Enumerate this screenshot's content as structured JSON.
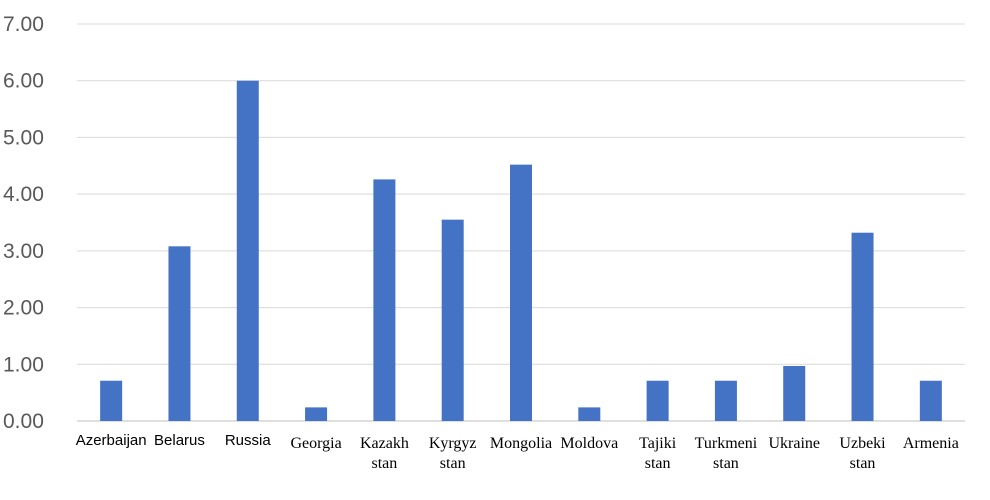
{
  "chart_data": {
    "type": "bar",
    "categories": [
      "Azerbaijan",
      "Belarus",
      "Russia",
      "Georgia",
      "Kazakhstan",
      "Kyrgyzstan",
      "Mongolia",
      "Moldova",
      "Tajikistan",
      "Turkmenistan",
      "Ukraine",
      "Uzbekistan",
      "Armenia"
    ],
    "category_label_lines": [
      [
        "Azerbaijan"
      ],
      [
        "Belarus"
      ],
      [
        "Russia"
      ],
      [
        "Georgia"
      ],
      [
        "Kazakh",
        "stan"
      ],
      [
        "Kyrgyz",
        "stan"
      ],
      [
        "Mongolia"
      ],
      [
        "Moldova"
      ],
      [
        "Tajiki",
        "stan"
      ],
      [
        "Turkmeni",
        "stan"
      ],
      [
        "Ukraine"
      ],
      [
        "Uzbeki",
        "stan"
      ],
      [
        "Armenia"
      ]
    ],
    "category_label_fonts": [
      "sans",
      "sans",
      "sans",
      "serif",
      "serif",
      "serif",
      "serif",
      "serif",
      "serif",
      "serif",
      "serif",
      "serif",
      "serif"
    ],
    "series": [
      {
        "values": [
          0.71,
          3.08,
          6.0,
          0.24,
          4.26,
          3.55,
          4.52,
          0.24,
          0.71,
          0.71,
          0.97,
          3.32,
          0.71
        ],
        "color": "#4472c4"
      }
    ],
    "ylim": [
      0,
      7
    ],
    "yticks": [
      "0.00",
      "1.00",
      "2.00",
      "3.00",
      "4.00",
      "5.00",
      "6.00",
      "7.00"
    ],
    "grid": true,
    "legend": "none",
    "title": "",
    "xlabel": "",
    "ylabel": ""
  }
}
